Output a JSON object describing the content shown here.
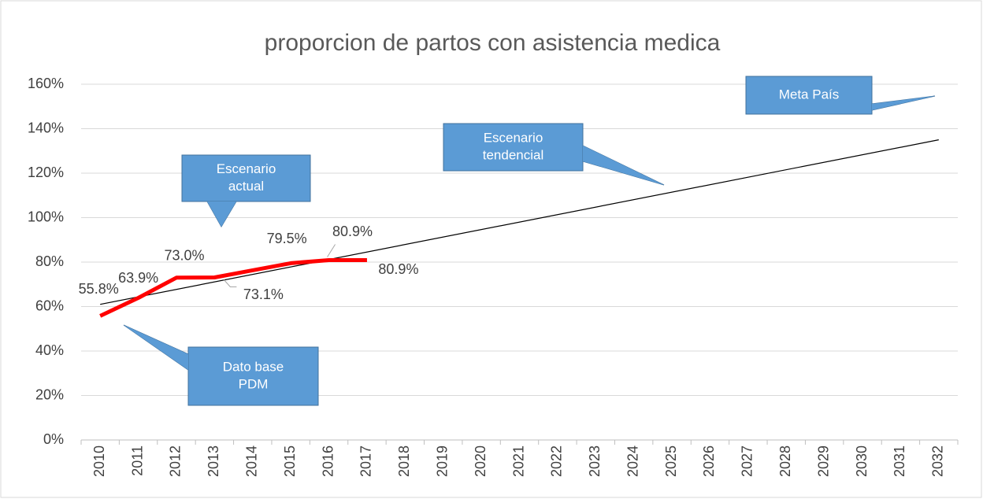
{
  "chart_data": {
    "type": "line",
    "title": "proporcion de partos con asistencia medica",
    "categories": [
      "2010",
      "2011",
      "2012",
      "2013",
      "2014",
      "2015",
      "2016",
      "2017",
      "2018",
      "2019",
      "2020",
      "2021",
      "2022",
      "2023",
      "2024",
      "2025",
      "2026",
      "2027",
      "2028",
      "2029",
      "2030",
      "2031",
      "2032"
    ],
    "series": [
      {
        "color": "#ff0000",
        "values": [
          55.8,
          63.9,
          73.0,
          73.1,
          76.3,
          79.5,
          80.9,
          80.9,
          null,
          null,
          null,
          null,
          null,
          null,
          null,
          null,
          null,
          null,
          null,
          null,
          null,
          null,
          null
        ],
        "value_labels": [
          "55.8%",
          "63.9%",
          "73.0%",
          "73.1%",
          null,
          "79.5%",
          "80.9%",
          "80.9%",
          null,
          null,
          null,
          null,
          null,
          null,
          null,
          null,
          null,
          null,
          null,
          null,
          null,
          null,
          null
        ]
      }
    ],
    "trendline": {
      "color": "#000000",
      "start": 61,
      "end": 135
    },
    "ylim": [
      0,
      160
    ],
    "yticks": [
      {
        "value": 0,
        "label": "0%"
      },
      {
        "value": 20,
        "label": "20%"
      },
      {
        "value": 40,
        "label": "40%"
      },
      {
        "value": 60,
        "label": "60%"
      },
      {
        "value": 80,
        "label": "80%"
      },
      {
        "value": 100,
        "label": "100%"
      },
      {
        "value": 120,
        "label": "120%"
      },
      {
        "value": 140,
        "label": "140%"
      },
      {
        "value": 160,
        "label": "160%"
      }
    ],
    "grid": true,
    "annotations": [
      {
        "lines": [
          "Escenario",
          "actual"
        ]
      },
      {
        "lines": [
          "Escenario",
          "tendencial"
        ]
      },
      {
        "lines": [
          "Dato base",
          "PDM"
        ]
      },
      {
        "lines": [
          "Meta  País"
        ]
      }
    ]
  }
}
